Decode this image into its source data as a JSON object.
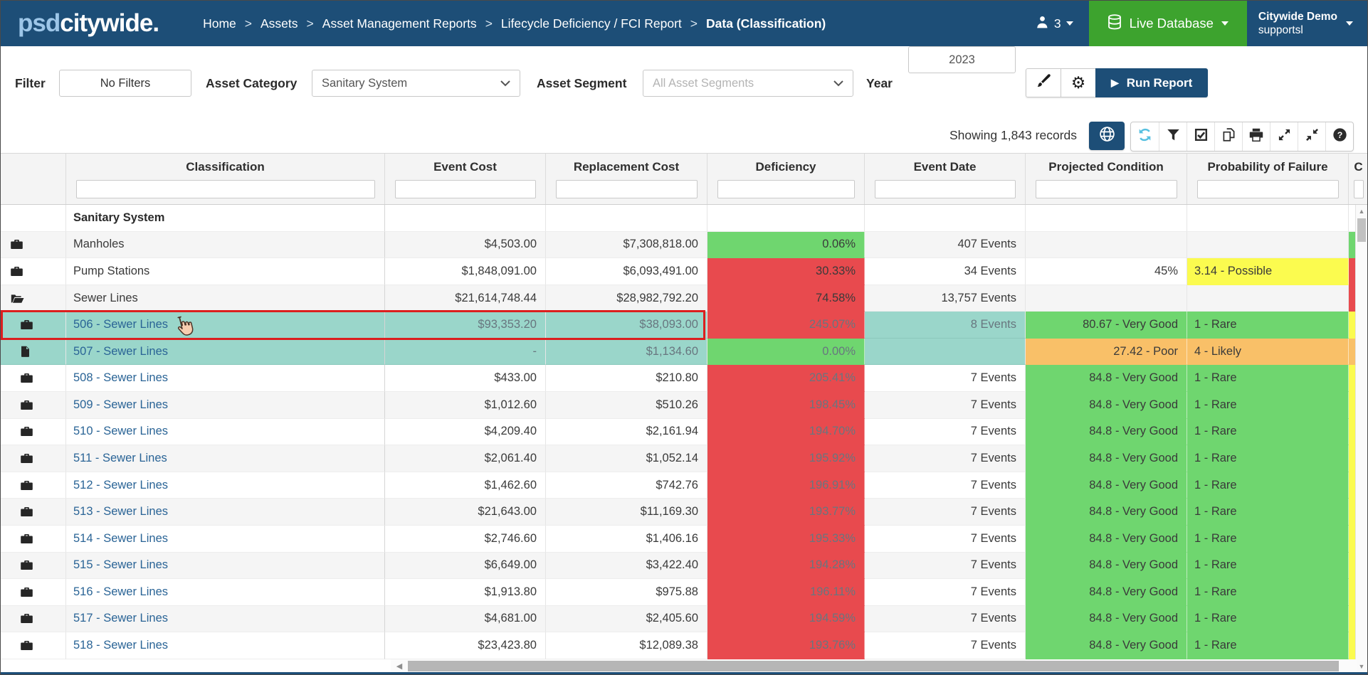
{
  "navbar": {
    "logo_psd": "psd",
    "logo_citywide": "citywide",
    "logo_dot": ".",
    "separator": ">",
    "breadcrumbs": [
      "Home",
      "Assets",
      "Asset Management Reports",
      "Lifecycle Deficiency / FCI Report",
      "Data (Classification)"
    ],
    "user_count": "3",
    "live_database_label": "Live Database",
    "account_name": "Citywide Demo",
    "account_subtitle": "supportsl"
  },
  "filter_bar": {
    "filter_label": "Filter",
    "no_filters_button": "No Filters",
    "asset_category_label": "Asset Category",
    "asset_category_value": "Sanitary System",
    "asset_segment_label": "Asset Segment",
    "asset_segment_placeholder": "All Asset Segments",
    "year_label": "Year",
    "year_value": "2023",
    "run_report_label": "Run Report"
  },
  "toolbar": {
    "record_count": "Showing 1,843 records",
    "globe_button_icon": "globe-icon",
    "buttons": [
      "refresh-icon",
      "filter-icon",
      "check-square-icon",
      "copy-icon",
      "print-icon",
      "expand-icon",
      "compress-icon",
      "help-icon"
    ]
  },
  "table": {
    "columns": [
      "",
      "Classification",
      "Event Cost",
      "Replacement Cost",
      "Deficiency",
      "Event Date",
      "Projected Condition",
      "Probability of Failure",
      "C"
    ],
    "rows": [
      {
        "icon": "",
        "indent": 0,
        "classification": "Sanitary System",
        "link": false,
        "bold": true,
        "shade": false,
        "selected": false,
        "selection_border": false,
        "cursor": false,
        "event_cost": "",
        "replacement_cost": "",
        "deficiency": "",
        "deficiency_bg": "",
        "muted": false,
        "event_date": "",
        "projected_condition": "",
        "pc_bg": "",
        "pof": "",
        "pof_bg": "",
        "sliver": ""
      },
      {
        "icon": "folder",
        "indent": 0,
        "classification": "Manholes",
        "link": false,
        "bold": false,
        "shade": true,
        "selected": false,
        "selection_border": false,
        "cursor": false,
        "event_cost": "$4,503.00",
        "replacement_cost": "$7,308,818.00",
        "deficiency": "0.06%",
        "deficiency_bg": "green",
        "muted": false,
        "event_date": "407 Events",
        "projected_condition": "",
        "pc_bg": "",
        "pof": "",
        "pof_bg": "",
        "sliver": "green"
      },
      {
        "icon": "folder",
        "indent": 0,
        "classification": "Pump Stations",
        "link": false,
        "bold": false,
        "shade": false,
        "selected": false,
        "selection_border": false,
        "cursor": false,
        "event_cost": "$1,848,091.00",
        "replacement_cost": "$6,093,491.00",
        "deficiency": "30.33%",
        "deficiency_bg": "red",
        "muted": false,
        "event_date": "34 Events",
        "projected_condition": "45%",
        "pc_bg": "",
        "pof": "3.14 - Possible",
        "pof_bg": "yellow",
        "sliver": "red"
      },
      {
        "icon": "folder-open",
        "indent": 0,
        "classification": "Sewer Lines",
        "link": false,
        "bold": false,
        "shade": true,
        "selected": false,
        "selection_border": false,
        "cursor": false,
        "event_cost": "$21,614,748.44",
        "replacement_cost": "$28,982,792.20",
        "deficiency": "74.58%",
        "deficiency_bg": "red",
        "muted": false,
        "event_date": "13,757 Events",
        "projected_condition": "",
        "pc_bg": "",
        "pof": "",
        "pof_bg": "",
        "sliver": "red"
      },
      {
        "icon": "folder",
        "indent": 1,
        "classification": "506 - Sewer Lines",
        "link": true,
        "bold": false,
        "shade": false,
        "selected": true,
        "selection_border": true,
        "cursor": true,
        "event_cost": "$93,353.20",
        "replacement_cost": "$38,093.00",
        "deficiency": "245.07%",
        "deficiency_bg": "red",
        "muted": true,
        "event_date": "8 Events",
        "projected_condition": "80.67 - Very Good",
        "pc_bg": "green",
        "pof": "1 - Rare",
        "pof_bg": "green",
        "sliver": "yellow"
      },
      {
        "icon": "file",
        "indent": 1,
        "classification": "507 - Sewer Lines",
        "link": true,
        "bold": false,
        "shade": false,
        "selected": true,
        "selection_border": false,
        "cursor": false,
        "event_cost": "-",
        "replacement_cost": "$1,134.60",
        "deficiency": "0.00%",
        "deficiency_bg": "green",
        "muted": true,
        "event_date": "",
        "projected_condition": "27.42 - Poor",
        "pc_bg": "orange",
        "pof": "4 - Likely",
        "pof_bg": "orange",
        "sliver": "orange"
      },
      {
        "icon": "folder",
        "indent": 1,
        "classification": "508 - Sewer Lines",
        "link": true,
        "bold": false,
        "shade": false,
        "selected": false,
        "selection_border": false,
        "cursor": false,
        "event_cost": "$433.00",
        "replacement_cost": "$210.80",
        "deficiency": "205.41%",
        "deficiency_bg": "red",
        "muted": true,
        "event_date": "7 Events",
        "projected_condition": "84.8 - Very Good",
        "pc_bg": "green",
        "pof": "1 - Rare",
        "pof_bg": "green",
        "sliver": "yellow"
      },
      {
        "icon": "folder",
        "indent": 1,
        "classification": "509 - Sewer Lines",
        "link": true,
        "bold": false,
        "shade": true,
        "selected": false,
        "selection_border": false,
        "cursor": false,
        "event_cost": "$1,012.60",
        "replacement_cost": "$510.26",
        "deficiency": "198.45%",
        "deficiency_bg": "red",
        "muted": true,
        "event_date": "7 Events",
        "projected_condition": "84.8 - Very Good",
        "pc_bg": "green",
        "pof": "1 - Rare",
        "pof_bg": "green",
        "sliver": "yellow"
      },
      {
        "icon": "folder",
        "indent": 1,
        "classification": "510 - Sewer Lines",
        "link": true,
        "bold": false,
        "shade": false,
        "selected": false,
        "selection_border": false,
        "cursor": false,
        "event_cost": "$4,209.40",
        "replacement_cost": "$2,161.94",
        "deficiency": "194.70%",
        "deficiency_bg": "red",
        "muted": true,
        "event_date": "7 Events",
        "projected_condition": "84.8 - Very Good",
        "pc_bg": "green",
        "pof": "1 - Rare",
        "pof_bg": "green",
        "sliver": "yellow"
      },
      {
        "icon": "folder",
        "indent": 1,
        "classification": "511 - Sewer Lines",
        "link": true,
        "bold": false,
        "shade": true,
        "selected": false,
        "selection_border": false,
        "cursor": false,
        "event_cost": "$2,061.40",
        "replacement_cost": "$1,052.14",
        "deficiency": "195.92%",
        "deficiency_bg": "red",
        "muted": true,
        "event_date": "7 Events",
        "projected_condition": "84.8 - Very Good",
        "pc_bg": "green",
        "pof": "1 - Rare",
        "pof_bg": "green",
        "sliver": "yellow"
      },
      {
        "icon": "folder",
        "indent": 1,
        "classification": "512 - Sewer Lines",
        "link": true,
        "bold": false,
        "shade": false,
        "selected": false,
        "selection_border": false,
        "cursor": false,
        "event_cost": "$1,462.60",
        "replacement_cost": "$742.76",
        "deficiency": "196.91%",
        "deficiency_bg": "red",
        "muted": true,
        "event_date": "7 Events",
        "projected_condition": "84.8 - Very Good",
        "pc_bg": "green",
        "pof": "1 - Rare",
        "pof_bg": "green",
        "sliver": "yellow"
      },
      {
        "icon": "folder",
        "indent": 1,
        "classification": "513 - Sewer Lines",
        "link": true,
        "bold": false,
        "shade": true,
        "selected": false,
        "selection_border": false,
        "cursor": false,
        "event_cost": "$21,643.00",
        "replacement_cost": "$11,169.30",
        "deficiency": "193.77%",
        "deficiency_bg": "red",
        "muted": true,
        "event_date": "7 Events",
        "projected_condition": "84.8 - Very Good",
        "pc_bg": "green",
        "pof": "1 - Rare",
        "pof_bg": "green",
        "sliver": "yellow"
      },
      {
        "icon": "folder",
        "indent": 1,
        "classification": "514 - Sewer Lines",
        "link": true,
        "bold": false,
        "shade": false,
        "selected": false,
        "selection_border": false,
        "cursor": false,
        "event_cost": "$2,746.60",
        "replacement_cost": "$1,406.16",
        "deficiency": "195.33%",
        "deficiency_bg": "red",
        "muted": true,
        "event_date": "7 Events",
        "projected_condition": "84.8 - Very Good",
        "pc_bg": "green",
        "pof": "1 - Rare",
        "pof_bg": "green",
        "sliver": "yellow"
      },
      {
        "icon": "folder",
        "indent": 1,
        "classification": "515 - Sewer Lines",
        "link": true,
        "bold": false,
        "shade": true,
        "selected": false,
        "selection_border": false,
        "cursor": false,
        "event_cost": "$6,649.00",
        "replacement_cost": "$3,422.40",
        "deficiency": "194.28%",
        "deficiency_bg": "red",
        "muted": true,
        "event_date": "7 Events",
        "projected_condition": "84.8 - Very Good",
        "pc_bg": "green",
        "pof": "1 - Rare",
        "pof_bg": "green",
        "sliver": "yellow"
      },
      {
        "icon": "folder",
        "indent": 1,
        "classification": "516 - Sewer Lines",
        "link": true,
        "bold": false,
        "shade": false,
        "selected": false,
        "selection_border": false,
        "cursor": false,
        "event_cost": "$1,913.80",
        "replacement_cost": "$975.88",
        "deficiency": "196.11%",
        "deficiency_bg": "red",
        "muted": true,
        "event_date": "7 Events",
        "projected_condition": "84.8 - Very Good",
        "pc_bg": "green",
        "pof": "1 - Rare",
        "pof_bg": "green",
        "sliver": "yellow"
      },
      {
        "icon": "folder",
        "indent": 1,
        "classification": "517 - Sewer Lines",
        "link": true,
        "bold": false,
        "shade": true,
        "selected": false,
        "selection_border": false,
        "cursor": false,
        "event_cost": "$4,681.00",
        "replacement_cost": "$2,405.60",
        "deficiency": "194.59%",
        "deficiency_bg": "red",
        "muted": true,
        "event_date": "7 Events",
        "projected_condition": "84.8 - Very Good",
        "pc_bg": "green",
        "pof": "1 - Rare",
        "pof_bg": "green",
        "sliver": "yellow"
      },
      {
        "icon": "folder",
        "indent": 1,
        "classification": "518 - Sewer Lines",
        "link": true,
        "bold": false,
        "shade": false,
        "selected": false,
        "selection_border": false,
        "cursor": false,
        "event_cost": "$23,423.80",
        "replacement_cost": "$12,089.38",
        "deficiency": "193.76%",
        "deficiency_bg": "red",
        "muted": true,
        "event_date": "7 Events",
        "projected_condition": "84.8 - Very Good",
        "pc_bg": "green",
        "pof": "1 - Rare",
        "pof_bg": "green",
        "sliver": "yellow"
      }
    ]
  },
  "colors": {
    "navbar": "#1d4e77",
    "green_button": "#3da32e",
    "cell_green": "#6fd66f",
    "cell_red": "#e84a4e",
    "cell_yellow": "#fbfb4f",
    "cell_orange": "#f9c068",
    "row_selected": "#9ad6ca",
    "link": "#2a6496",
    "selection_border": "#dc1f1f"
  }
}
